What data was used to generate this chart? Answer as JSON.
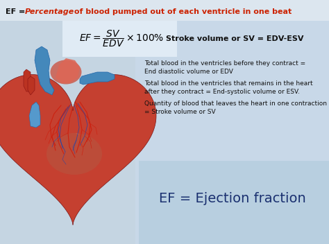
{
  "title_prefix": "EF = ",
  "title_italic_red": "Percentage",
  "title_suffix": " of blood pumped out of each ventricle in one beat",
  "stroke_volume_text": "Stroke volume or SV = EDV-ESV",
  "bullet1_line1": "Total blood in the ventricles before they contract =",
  "bullet1_line2": "End diastolic volume or EDV",
  "bullet2_line1": "Total blood in the ventricles that remains in the heart",
  "bullet2_line2": "after they contract = End-systolic volume or ESV.",
  "bullet3_line1": "Quantity of blood that leaves the heart in one contraction",
  "bullet3_line2": "= Stroke volume or SV",
  "ef_text": "EF = Ejection fraction",
  "bg_color_left": "#c5d5e2",
  "bg_color_right": "#c8d8e8",
  "title_bar_color": "#dce6ef",
  "formula_bg_color": "#dde8f2",
  "ef_panel_color": "#c0d4e8",
  "title_black": "#111111",
  "title_red": "#cc2200",
  "formula_color": "#000000",
  "stroke_vol_color": "#111111",
  "bullet_color": "#111111",
  "ef_color": "#1a3070"
}
